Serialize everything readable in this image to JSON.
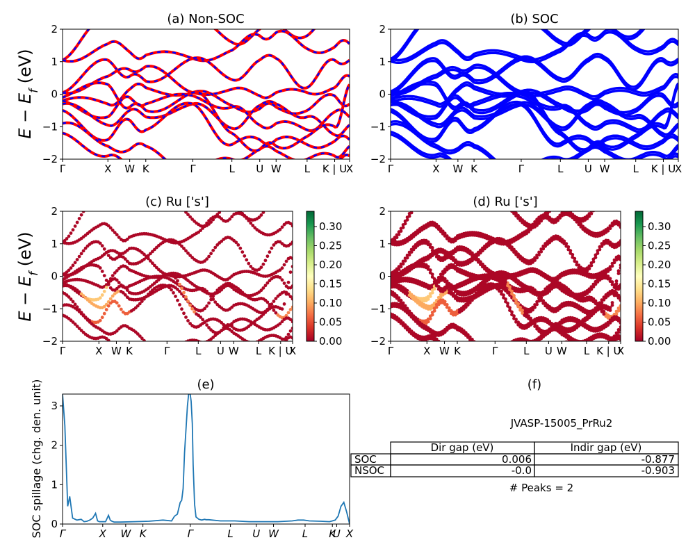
{
  "figure": {
    "kpath_labels": [
      "Γ",
      "X",
      "W",
      "K",
      "Γ",
      "L",
      "U",
      "W",
      "L",
      "K | U",
      "X"
    ],
    "band_colors": {
      "nsoc": "#ff0000",
      "soc": "#0000ff"
    },
    "cmap_colors": [
      "#a50026",
      "#d73027",
      "#f46d43",
      "#fdae61",
      "#fee08b",
      "#ffffbf",
      "#d9ef8b",
      "#a6d96a",
      "#66bd63",
      "#1a9850",
      "#006837"
    ],
    "panel_b_title": "(b) SOC"
  },
  "chart_data": [
    {
      "id": "a",
      "type": "line",
      "title": "(a) Non-SOC",
      "ylabel": "E − E_f (eV)",
      "ylim": [
        -2,
        2
      ],
      "yticks": [
        "2",
        "1",
        "0",
        "−1",
        "−2"
      ],
      "xticks": [
        "Γ",
        "X",
        "W",
        "K",
        "Γ",
        "L",
        "U",
        "W",
        "L",
        "K | U",
        "X"
      ],
      "series": [
        {
          "name": "NSOC",
          "color": "#ff0000",
          "style": "solid"
        },
        {
          "name": "SOC",
          "color": "#0000ff",
          "style": "dashed"
        }
      ]
    },
    {
      "id": "b",
      "type": "line",
      "title": "(b) SOC",
      "ylim": [
        -2,
        2
      ],
      "yticks": [
        "2",
        "1",
        "0",
        "−1",
        "−2"
      ],
      "xticks": [
        "Γ",
        "X",
        "W",
        "K",
        "Γ",
        "L",
        "U",
        "W",
        "L",
        "K | U",
        "X"
      ],
      "series": [
        {
          "name": "SOC",
          "color": "#0000ff",
          "style": "solid"
        }
      ]
    },
    {
      "id": "c",
      "type": "scatter",
      "title": "(c)  Ru ['s']",
      "ylabel": "E − E_f (eV)",
      "ylim": [
        -2,
        2
      ],
      "yticks": [
        "2",
        "1",
        "0",
        "−1",
        "−2"
      ],
      "xticks": [
        "Γ",
        "X",
        "W",
        "K",
        "Γ",
        "L",
        "U",
        "W",
        "L",
        "K | U",
        "X"
      ],
      "colorbar": {
        "range": [
          0.0,
          0.34
        ],
        "ticks": [
          "0.30",
          "0.25",
          "0.20",
          "0.15",
          "0.10",
          "0.05",
          "0.00"
        ],
        "cmap": "RdYlGn"
      }
    },
    {
      "id": "d",
      "type": "scatter",
      "title": "(d) Ru ['s']",
      "ylim": [
        -2,
        2
      ],
      "yticks": [
        "2",
        "1",
        "0",
        "−1",
        "−2"
      ],
      "xticks": [
        "Γ",
        "X",
        "W",
        "K",
        "Γ",
        "L",
        "U",
        "W",
        "L",
        "K | U",
        "X"
      ],
      "colorbar": {
        "range": [
          0.0,
          0.34
        ],
        "ticks": [
          "0.30",
          "0.25",
          "0.20",
          "0.15",
          "0.10",
          "0.05",
          "0.00"
        ],
        "cmap": "RdYlGn"
      }
    },
    {
      "id": "e",
      "type": "line",
      "title": "(e)",
      "ylabel": "SOC spillage (chg. den. unit)",
      "ylim": [
        0,
        3.3
      ],
      "yticks": [
        "0",
        "1",
        "2",
        "3"
      ],
      "xticks": [
        "Γ",
        "X",
        "W",
        "K",
        "Γ",
        "L",
        "U",
        "W",
        "L",
        "K",
        "U",
        "X"
      ],
      "series": [
        {
          "color": "#1f77b4",
          "x": [
            0,
            0.008,
            0.018,
            0.025,
            0.035,
            0.05,
            0.065,
            0.075,
            0.085,
            0.095,
            0.105,
            0.115,
            0.122,
            0.128,
            0.135,
            0.15,
            0.16,
            0.166,
            0.172,
            0.18,
            0.2,
            0.25,
            0.3,
            0.35,
            0.38,
            0.39,
            0.4,
            0.41,
            0.415,
            0.42,
            0.425,
            0.435,
            0.44,
            0.445,
            0.448,
            0.452,
            0.455,
            0.46,
            0.465,
            0.475,
            0.485,
            0.495,
            0.5,
            0.51,
            0.55,
            0.6,
            0.65,
            0.7,
            0.75,
            0.8,
            0.82,
            0.84,
            0.86,
            0.9,
            0.93,
            0.94,
            0.95,
            0.96,
            0.97,
            0.98,
            0.99,
            1.0
          ],
          "y": [
            3.3,
            2.5,
            0.45,
            0.7,
            0.15,
            0.1,
            0.12,
            0.06,
            0.07,
            0.1,
            0.15,
            0.27,
            0.08,
            0.06,
            0.06,
            0.06,
            0.22,
            0.1,
            0.07,
            0.05,
            0.05,
            0.06,
            0.07,
            0.1,
            0.08,
            0.2,
            0.25,
            0.55,
            0.6,
            0.9,
            1.8,
            3.0,
            3.35,
            3.28,
            3.12,
            2.55,
            1.5,
            0.5,
            0.18,
            0.12,
            0.1,
            0.12,
            0.11,
            0.11,
            0.08,
            0.08,
            0.06,
            0.06,
            0.06,
            0.08,
            0.1,
            0.1,
            0.08,
            0.07,
            0.06,
            0.08,
            0.1,
            0.2,
            0.45,
            0.55,
            0.3,
            0.0
          ]
        }
      ]
    }
  ],
  "table": {
    "title": "(f)",
    "material": "JVASP-15005_PrRu2",
    "col_labels": [
      "Dir gap (eV)",
      "Indir gap (eV)"
    ],
    "rows": [
      {
        "label": "SOC",
        "dir": "0.006",
        "indir": "-0.877"
      },
      {
        "label": "NSOC",
        "dir": "-0.0",
        "indir": "-0.903"
      }
    ],
    "peaks": "# Peaks = 2"
  }
}
